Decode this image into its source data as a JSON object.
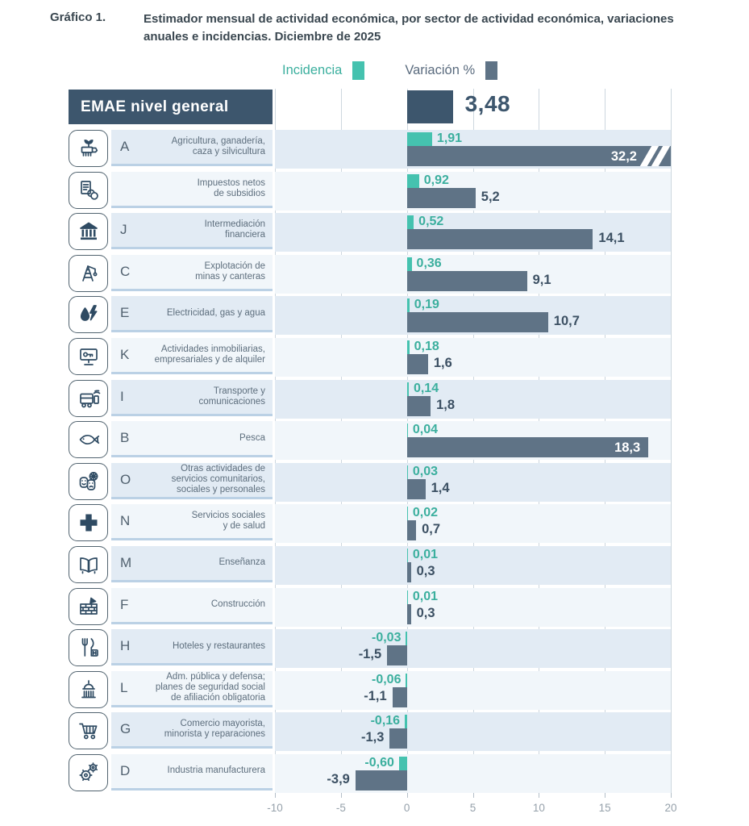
{
  "figure": {
    "tag": "Gráfico 1.",
    "title": "Estimador mensual de actividad económica, por sector de actividad económica, variaciones anuales e incidencias. Diciembre de 2025"
  },
  "legend": {
    "incidencia": "Incidencia",
    "variacion": "Variación %"
  },
  "header": {
    "label": "EMAE nivel general",
    "value": "3,48",
    "value_num": 3.48
  },
  "axis": {
    "tick_labels": [
      "-10",
      "-5",
      "0",
      "5",
      "10",
      "15",
      "20"
    ],
    "tick_values": [
      -10,
      -5,
      0,
      5,
      10,
      15,
      20
    ],
    "min": -10,
    "max": 20
  },
  "colors": {
    "teal": "#45C2AF",
    "teal_text": "#3BAF9E",
    "slate": "#5F7386",
    "navy": "#3D566D",
    "row_odd": "#E2EBF4",
    "row_even": "#F1F6FA",
    "grid": "#CDD7DF",
    "axis_text": "#96A1AB",
    "value_text": "#3C5063",
    "label_text": "#5D6E7D"
  },
  "chart_data": {
    "type": "bar",
    "orientation": "horizontal",
    "title": "Estimador mensual de actividad económica, por sector de actividad económica, variaciones anuales e incidencias. Diciembre de 2025",
    "xlim": [
      -10,
      20
    ],
    "grid": true,
    "legend_position": "top",
    "general_level": {
      "label": "EMAE nivel general",
      "variacion": 3.48
    },
    "categories": [
      "Agricultura, ganadería, caza y silvicultura",
      "Impuestos netos de subsidios",
      "Intermediación financiera",
      "Explotación de minas y canteras",
      "Electricidad, gas y agua",
      "Actividades inmobiliarias, empresariales y de alquiler",
      "Transporte y comunicaciones",
      "Pesca",
      "Otras actividades de servicios comunitarios, sociales y personales",
      "Servicios sociales y de salud",
      "Enseñanza",
      "Construcción",
      "Hoteles y restaurantes",
      "Adm. pública y defensa; planes de seguridad social de afiliación obligatoria",
      "Comercio mayorista, minorista y reparaciones",
      "Industria manufacturera"
    ],
    "series": [
      {
        "name": "Incidencia",
        "values": [
          1.91,
          0.92,
          0.52,
          0.36,
          0.19,
          0.18,
          0.14,
          0.04,
          0.03,
          0.02,
          0.01,
          0.01,
          -0.03,
          -0.06,
          -0.16,
          -0.6
        ]
      },
      {
        "name": "Variación %",
        "values": [
          32.2,
          5.2,
          14.1,
          9.1,
          10.7,
          1.6,
          1.8,
          18.3,
          1.4,
          0.7,
          0.3,
          0.3,
          -1.5,
          -1.1,
          -1.3,
          -3.9
        ]
      }
    ],
    "note": "Barra de Agricultura truncada en el máximo del eje (32,2) con marcas de corte"
  },
  "rows": [
    {
      "code": "A",
      "icon": "agriculture-icon",
      "label": "Agricultura, ganadería,\ncaza y silvicultura",
      "incidencia": "1,91",
      "incidencia_val": 1.91,
      "variacion": "32,2",
      "variacion_val": 32.2
    },
    {
      "code": "",
      "icon": "taxes-icon",
      "label": "Impuestos netos\nde subsidios",
      "incidencia": "0,92",
      "incidencia_val": 0.92,
      "variacion": "5,2",
      "variacion_val": 5.2
    },
    {
      "code": "J",
      "icon": "bank-icon",
      "label": "Intermediación\nfinanciera",
      "incidencia": "0,52",
      "incidencia_val": 0.52,
      "variacion": "14,1",
      "variacion_val": 14.1
    },
    {
      "code": "C",
      "icon": "mining-icon",
      "label": "Explotación de\nminas y canteras",
      "incidencia": "0,36",
      "incidencia_val": 0.36,
      "variacion": "9,1",
      "variacion_val": 9.1
    },
    {
      "code": "E",
      "icon": "energy-icon",
      "label": "Electricidad, gas y agua",
      "incidencia": "0,19",
      "incidencia_val": 0.19,
      "variacion": "10,7",
      "variacion_val": 10.7
    },
    {
      "code": "K",
      "icon": "real-estate-icon",
      "label": "Actividades inmobiliarias,\nempresariales y de alquiler",
      "incidencia": "0,18",
      "incidencia_val": 0.18,
      "variacion": "1,6",
      "variacion_val": 1.6
    },
    {
      "code": "I",
      "icon": "transport-icon",
      "label": "Transporte y\ncomunicaciones",
      "incidencia": "0,14",
      "incidencia_val": 0.14,
      "variacion": "1,8",
      "variacion_val": 1.8
    },
    {
      "code": "B",
      "icon": "fishing-icon",
      "label": "Pesca",
      "incidencia": "0,04",
      "incidencia_val": 0.04,
      "variacion": "18,3",
      "variacion_val": 18.3
    },
    {
      "code": "O",
      "icon": "community-services-icon",
      "label": "Otras actividades de\nservicios comunitarios,\nsociales y personales",
      "incidencia": "0,03",
      "incidencia_val": 0.03,
      "variacion": "1,4",
      "variacion_val": 1.4
    },
    {
      "code": "N",
      "icon": "health-icon",
      "label": "Servicios sociales\ny de salud",
      "incidencia": "0,02",
      "incidencia_val": 0.02,
      "variacion": "0,7",
      "variacion_val": 0.7
    },
    {
      "code": "M",
      "icon": "education-icon",
      "label": "Enseñanza",
      "incidencia": "0,01",
      "incidencia_val": 0.01,
      "variacion": "0,3",
      "variacion_val": 0.3
    },
    {
      "code": "F",
      "icon": "construction-icon",
      "label": "Construcción",
      "incidencia": "0,01",
      "incidencia_val": 0.01,
      "variacion": "0,3",
      "variacion_val": 0.3
    },
    {
      "code": "H",
      "icon": "hotels-restaurants-icon",
      "label": "Hoteles y restaurantes",
      "incidencia": "-0,03",
      "incidencia_val": -0.03,
      "variacion": "-1,5",
      "variacion_val": -1.5
    },
    {
      "code": "L",
      "icon": "public-administration-icon",
      "label": "Adm. pública y defensa;\nplanes de seguridad social\nde afiliación obligatoria",
      "incidencia": "-0,06",
      "incidencia_val": -0.06,
      "variacion": "-1,1",
      "variacion_val": -1.1
    },
    {
      "code": "G",
      "icon": "commerce-icon",
      "label": "Comercio mayorista,\nminorista y reparaciones",
      "incidencia": "-0,16",
      "incidencia_val": -0.16,
      "variacion": "-1,3",
      "variacion_val": -1.3
    },
    {
      "code": "D",
      "icon": "industry-icon",
      "label": "Industria manufacturera",
      "incidencia": "-0,60",
      "incidencia_val": -0.6,
      "variacion": "-3,9",
      "variacion_val": -3.9
    }
  ]
}
